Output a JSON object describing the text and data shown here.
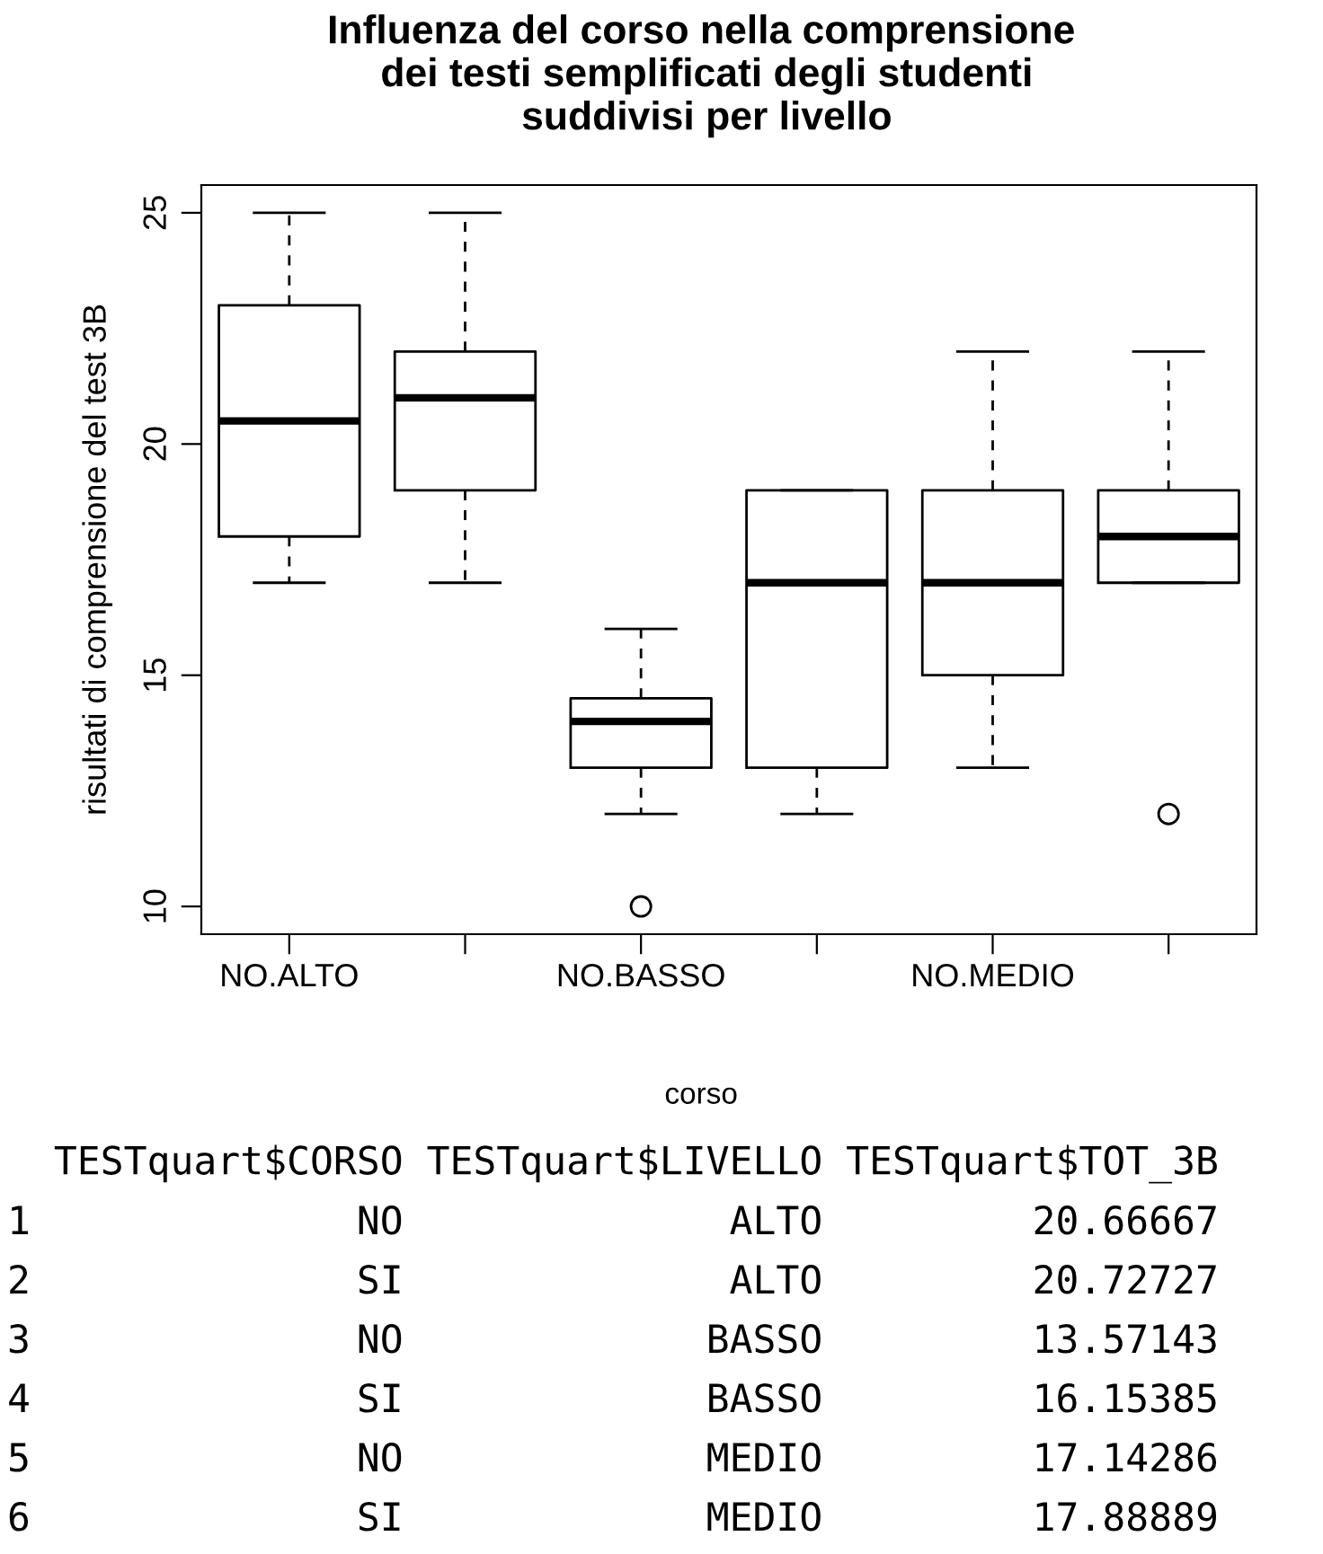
{
  "chart_data": {
    "type": "box",
    "title": "Influenza del corso nella comprensione\n dei testi semplificati degli studenti\n suddivisi per livello",
    "xlabel": "corso",
    "ylabel": "risultati di comprensione del test 3B",
    "categories": [
      "NO.ALTO",
      null,
      "NO.BASSO",
      null,
      "NO.MEDIO",
      null
    ],
    "boxes": [
      {
        "low": 17,
        "q1": 18,
        "median": 20.5,
        "q3": 23,
        "high": 25
      },
      {
        "low": 17,
        "q1": 19,
        "median": 21,
        "q3": 22,
        "high": 25
      },
      {
        "low": 12,
        "q1": 13,
        "median": 14,
        "q3": 14.5,
        "high": 16,
        "outliers": [
          10
        ]
      },
      {
        "low": 12,
        "q1": 13,
        "median": 17,
        "q3": 19,
        "high": 19
      },
      {
        "low": 13,
        "q1": 15,
        "median": 17,
        "q3": 19,
        "high": 22
      },
      {
        "low": 17,
        "q1": 17,
        "median": 18,
        "q3": 19,
        "high": 22,
        "outliers": [
          12
        ]
      }
    ],
    "ylim": [
      9.4,
      25.6
    ],
    "yticks": [
      10,
      15,
      20,
      25
    ],
    "grid": false,
    "legend": false,
    "annotations": [
      "  TESTquart$CORSO TESTquart$LIVELLO TESTquart$TOT_3B",
      "1              NO              ALTO         20.66667",
      "2              SI              ALTO         20.72727",
      "3              NO             BASSO         13.57143",
      "4              SI             BASSO         16.15385",
      "5              NO             MEDIO         17.14286",
      "6              SI             MEDIO         17.88889"
    ]
  }
}
